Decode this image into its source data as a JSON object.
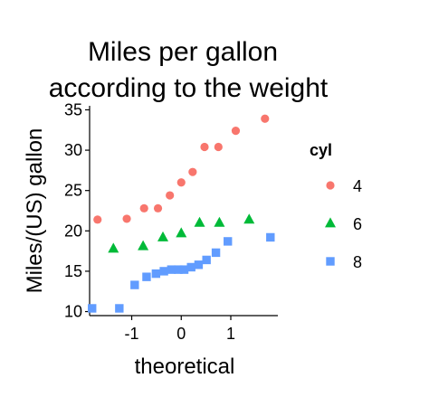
{
  "chart_data": {
    "type": "scatter",
    "title": [
      "Miles per gallon",
      "according to the weight"
    ],
    "xlabel": "theoretical",
    "ylabel": "Miles/(US) gallon",
    "xlim": [
      -1.85,
      1.95
    ],
    "ylim": [
      9.5,
      35.5
    ],
    "x_ticks": [
      -1,
      0,
      1
    ],
    "x_tick_labels": [
      "-1",
      "0",
      "1"
    ],
    "y_ticks": [
      10,
      15,
      20,
      25,
      30,
      35
    ],
    "y_tick_labels": [
      "10",
      "15",
      "20",
      "25",
      "30",
      "35"
    ],
    "grid": false,
    "legend": {
      "title": "cyl",
      "position": "right"
    },
    "series": [
      {
        "name": "4",
        "color": "#F8766D",
        "marker": "circle",
        "points": [
          {
            "x": -1.69,
            "y": 21.4
          },
          {
            "x": -1.1,
            "y": 21.5
          },
          {
            "x": -0.75,
            "y": 22.8
          },
          {
            "x": -0.47,
            "y": 22.8
          },
          {
            "x": -0.23,
            "y": 24.4
          },
          {
            "x": 0.0,
            "y": 26.0
          },
          {
            "x": 0.23,
            "y": 27.3
          },
          {
            "x": 0.47,
            "y": 30.4
          },
          {
            "x": 0.75,
            "y": 30.4
          },
          {
            "x": 1.1,
            "y": 32.4
          },
          {
            "x": 1.69,
            "y": 33.9
          }
        ]
      },
      {
        "name": "6",
        "color": "#00BA38",
        "marker": "triangle",
        "points": [
          {
            "x": -1.37,
            "y": 17.8
          },
          {
            "x": -0.77,
            "y": 18.1
          },
          {
            "x": -0.37,
            "y": 19.2
          },
          {
            "x": 0.0,
            "y": 19.7
          },
          {
            "x": 0.37,
            "y": 21.0
          },
          {
            "x": 0.77,
            "y": 21.0
          },
          {
            "x": 1.37,
            "y": 21.4
          }
        ]
      },
      {
        "name": "8",
        "color": "#619CFF",
        "marker": "square",
        "points": [
          {
            "x": -1.8,
            "y": 10.4
          },
          {
            "x": -1.25,
            "y": 10.4
          },
          {
            "x": -0.94,
            "y": 13.3
          },
          {
            "x": -0.7,
            "y": 14.3
          },
          {
            "x": -0.51,
            "y": 14.7
          },
          {
            "x": -0.35,
            "y": 15.0
          },
          {
            "x": -0.2,
            "y": 15.2
          },
          {
            "x": -0.06,
            "y": 15.2
          },
          {
            "x": 0.06,
            "y": 15.2
          },
          {
            "x": 0.2,
            "y": 15.5
          },
          {
            "x": 0.35,
            "y": 15.8
          },
          {
            "x": 0.51,
            "y": 16.4
          },
          {
            "x": 0.7,
            "y": 17.3
          },
          {
            "x": 0.94,
            "y": 18.7
          },
          {
            "x": 1.8,
            "y": 19.2
          }
        ]
      }
    ]
  }
}
